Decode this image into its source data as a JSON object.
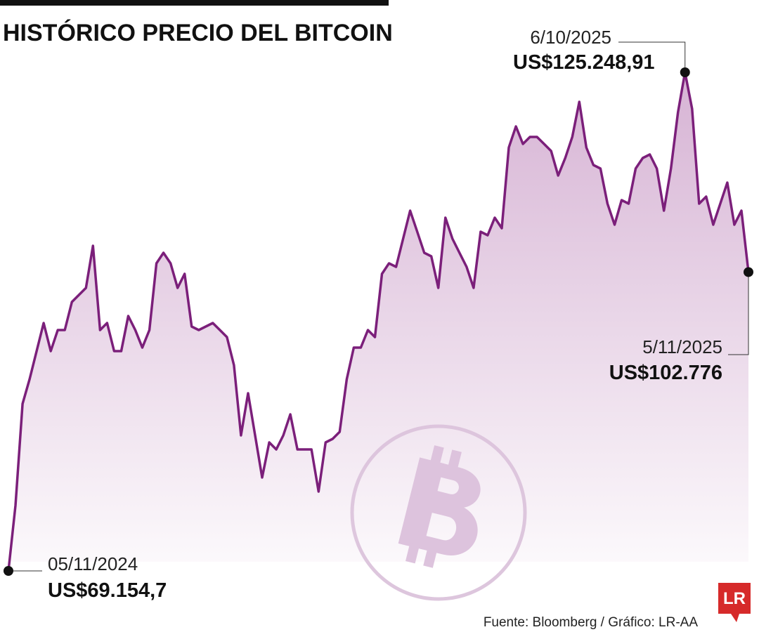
{
  "chart_data": {
    "type": "line",
    "title": "HISTÓRICO PRECIO DEL BITCOIN",
    "color": "#7b1f7a",
    "values": [
      69154.7,
      76502,
      87957,
      90722,
      93882,
      97042,
      93882,
      96252,
      96252,
      99412,
      100202,
      100992,
      105732,
      96252,
      97042,
      93882,
      93882,
      97832,
      96252,
      94277,
      96252,
      103757,
      104942,
      103757,
      100992,
      102572,
      96647,
      96252,
      96647,
      97042,
      96252,
      95462,
      92302,
      84402,
      89142,
      84402,
      79662,
      83612,
      82822,
      84402,
      86772,
      82822,
      82822,
      82822,
      78082,
      83612,
      84007,
      84797,
      90722,
      94277,
      94277,
      96252,
      95462,
      102572,
      103757,
      103362,
      106522,
      109682,
      107312,
      104942,
      104547,
      100992,
      108892,
      106522,
      104942,
      103362,
      100992,
      107312,
      106917,
      108892,
      107707,
      116792,
      119162,
      117187,
      117977,
      117977,
      117187,
      116397,
      113632,
      115607,
      117977,
      121927,
      116792,
      114817,
      114422,
      110472,
      108102,
      110867,
      110472,
      114422,
      115607,
      116002,
      114422,
      109682,
      114422,
      120742,
      125248.91,
      121137,
      110472,
      111262,
      108102,
      110472,
      112842,
      108102,
      109682,
      102776
    ],
    "annotations": [
      {
        "date": "05/11/2024",
        "value": 69154.7,
        "value_label": "US$69.154,7"
      },
      {
        "date": "6/10/2025",
        "value": 125248.91,
        "value_label": "US$125.248,91"
      },
      {
        "date": "5/11/2025",
        "value": 102776,
        "value_label": "US$102.776"
      }
    ],
    "source": "Fuente: Bloomberg / Gráfico: LR-AA",
    "logo": "LR"
  }
}
